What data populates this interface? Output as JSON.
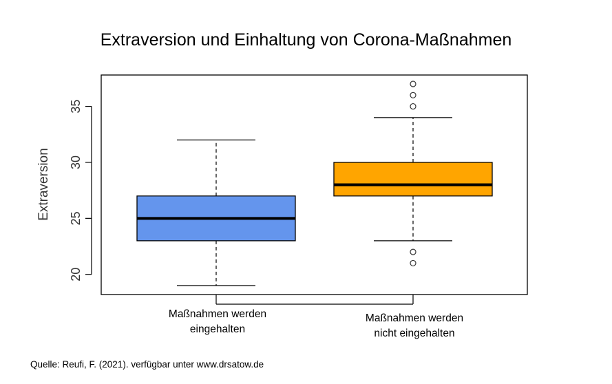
{
  "chart_data": {
    "type": "boxplot",
    "title": "Extraversion und Einhaltung von Corona-Maßnahmen",
    "xlabel": "",
    "ylabel": "Extraversion",
    "ylim": [
      18.2,
      37.8
    ],
    "yticks": [
      20,
      25,
      30,
      35
    ],
    "grid": false,
    "legend": "none",
    "categories": [
      {
        "line1": "Maßnahmen werden",
        "line2": "eingehalten"
      },
      {
        "line1": "Maßnahmen werden",
        "line2": "nicht eingehalten"
      }
    ],
    "boxes": [
      {
        "whisker_low": 19,
        "q1": 23,
        "median": 25,
        "q3": 27,
        "whisker_high": 32,
        "outliers": [],
        "color": "#6495ED"
      },
      {
        "whisker_low": 23,
        "q1": 27,
        "median": 28,
        "q3": 30,
        "whisker_high": 34,
        "outliers": [
          21,
          22,
          35,
          36,
          37
        ],
        "color": "#FFA500"
      }
    ]
  },
  "source_note": "Quelle: Reufi, F. (2021). verfügbar unter www.drsatow.de"
}
